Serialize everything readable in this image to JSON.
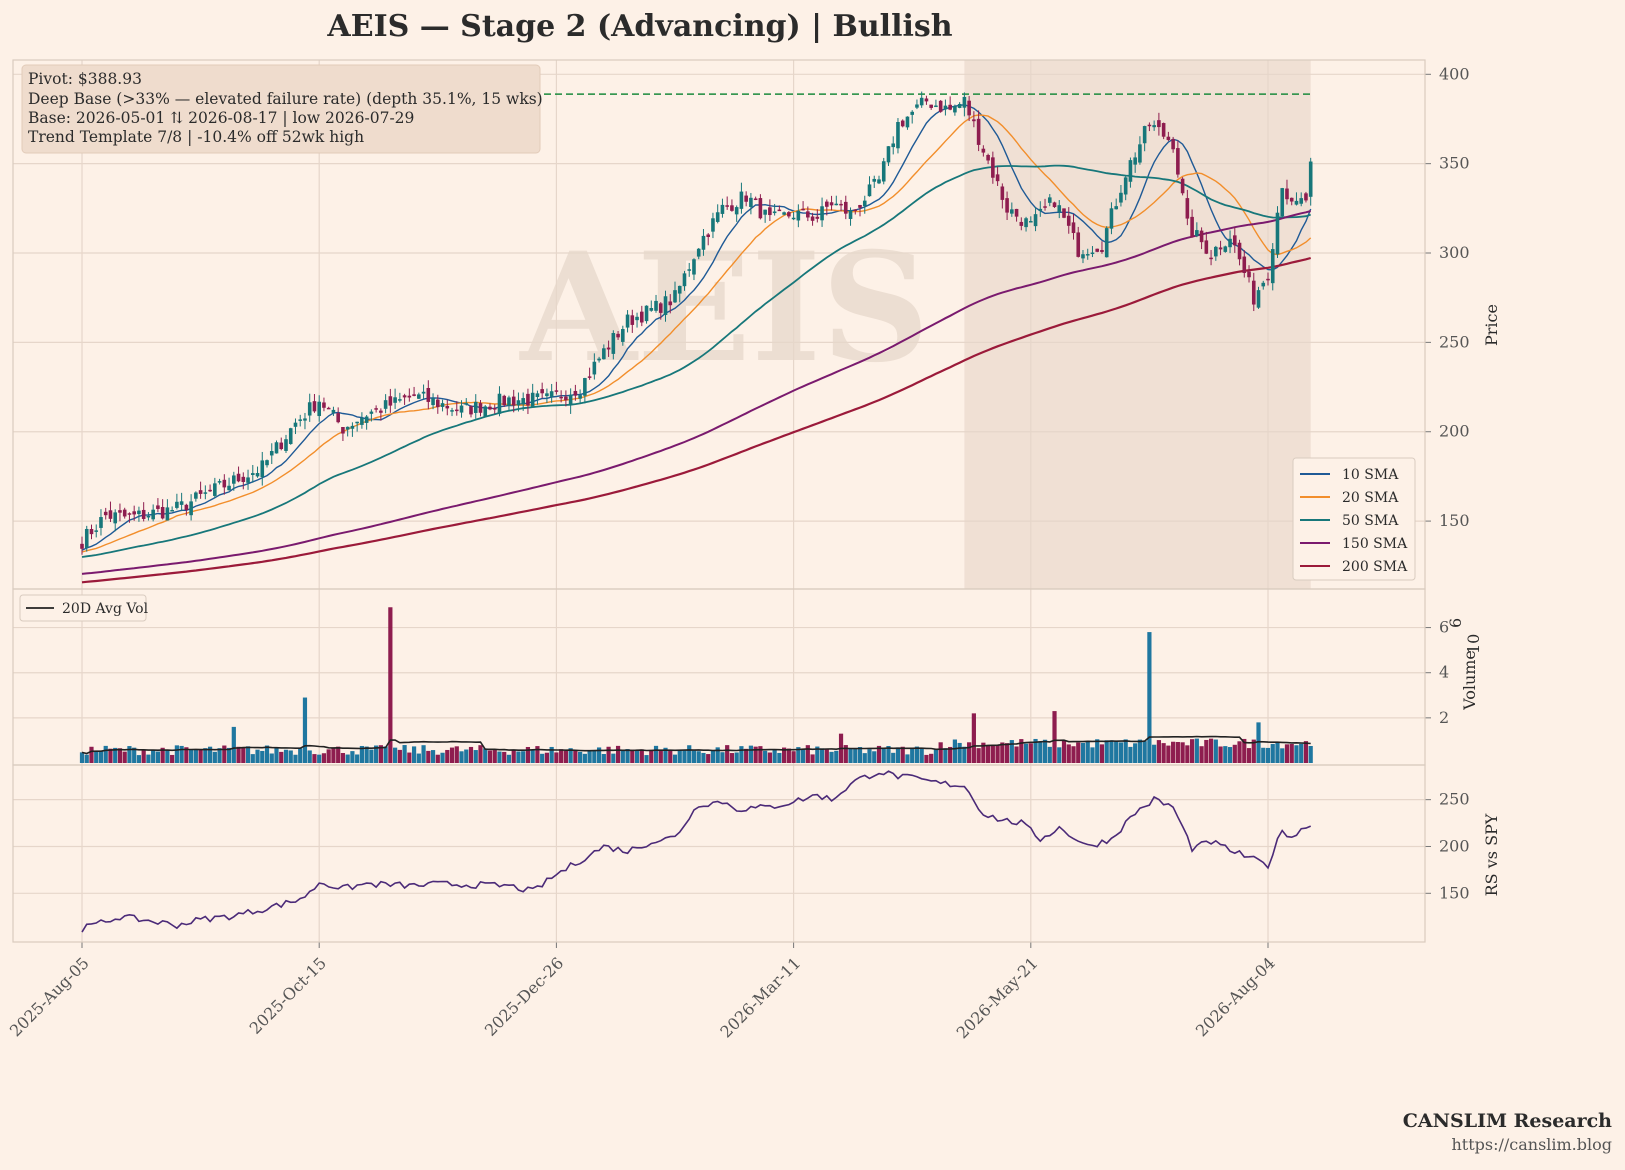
{
  "title": "AEIS  —  Stage 2 (Advancing)  |  Bullish",
  "watermark": "AEIS",
  "annotation_box": {
    "line1": "Pivot: $388.93",
    "line2": "Deep Base (>33% — elevated failure rate)  (depth 35.1%, 15 wks)",
    "line3": "Base: 2026-05-01 ⇅ 2026-08-17  |  low 2026-07-29",
    "line4": "Trend Template 7/8  |  -10.4% off 52wk high"
  },
  "footer": {
    "brand": "CANSLIM Research",
    "url": "https://canslim.blog"
  },
  "colors": {
    "background": "#fdf1e7",
    "sma10": "#1f5a96",
    "sma20": "#f28e2b",
    "sma50": "#17777a",
    "sma150": "#7a1a6e",
    "sma200": "#9b1a3a",
    "candle_up": "#17777a",
    "candle_down": "#8e1d4f",
    "pivot_line": "#1b8a3c",
    "base_shade": "#e9d8cc",
    "rs_line": "#4b2a78",
    "avg_vol": "#222222"
  },
  "chart_data": {
    "type": "candlestick",
    "x_tick_labels": [
      "2025-Aug-05",
      "2025-Oct-15",
      "2025-Dec-26",
      "2026-Mar-11",
      "2026-May-21",
      "2026-Aug-04"
    ],
    "x_tick_index": [
      0,
      50,
      100,
      150,
      200,
      250
    ],
    "n_bars": 260,
    "price_panel": {
      "ylabel": "Price",
      "yticks": [
        150,
        200,
        250,
        300,
        350,
        400
      ],
      "ylim": [
        112,
        408
      ],
      "pivot": 388.93,
      "base_shaded_index_range": [
        186,
        259
      ],
      "price_anchors": [
        [
          0,
          139
        ],
        [
          5,
          153
        ],
        [
          10,
          152
        ],
        [
          20,
          157
        ],
        [
          30,
          170
        ],
        [
          38,
          180
        ],
        [
          45,
          205
        ],
        [
          50,
          218
        ],
        [
          55,
          202
        ],
        [
          60,
          210
        ],
        [
          70,
          220
        ],
        [
          80,
          212
        ],
        [
          90,
          218
        ],
        [
          98,
          218
        ],
        [
          105,
          225
        ],
        [
          110,
          245
        ],
        [
          115,
          262
        ],
        [
          120,
          268
        ],
        [
          125,
          275
        ],
        [
          130,
          305
        ],
        [
          135,
          325
        ],
        [
          140,
          332
        ],
        [
          145,
          318
        ],
        [
          150,
          322
        ],
        [
          155,
          320
        ],
        [
          158,
          328
        ],
        [
          162,
          322
        ],
        [
          168,
          340
        ],
        [
          172,
          372
        ],
        [
          178,
          385
        ],
        [
          183,
          380
        ],
        [
          186,
          385
        ],
        [
          190,
          358
        ],
        [
          195,
          325
        ],
        [
          200,
          315
        ],
        [
          205,
          330
        ],
        [
          210,
          302
        ],
        [
          215,
          305
        ],
        [
          220,
          345
        ],
        [
          225,
          372
        ],
        [
          230,
          362
        ],
        [
          233,
          315
        ],
        [
          238,
          300
        ],
        [
          242,
          310
        ],
        [
          247,
          275
        ],
        [
          250,
          290
        ],
        [
          253,
          340
        ],
        [
          255,
          325
        ],
        [
          258,
          330
        ],
        [
          259,
          348
        ]
      ],
      "legend": [
        {
          "name": "10 SMA",
          "color_key": "sma10"
        },
        {
          "name": "20 SMA",
          "color_key": "sma20"
        },
        {
          "name": "50 SMA",
          "color_key": "sma50"
        },
        {
          "name": "150 SMA",
          "color_key": "sma150"
        },
        {
          "name": "200 SMA",
          "color_key": "sma200"
        }
      ],
      "legend_position": "lower-right"
    },
    "volume_panel": {
      "ylabel": "Volume",
      "exponent": "10",
      "exponent_power": "6",
      "yticks": [
        "2",
        "4",
        "6"
      ],
      "ylim_millions": [
        0,
        7
      ],
      "legend": "20D Avg Vol",
      "legend_position": "upper-left",
      "spikes_millions": [
        [
          65,
          6.9
        ],
        [
          225,
          5.8
        ],
        [
          65,
          6.9
        ],
        [
          47,
          2.9
        ],
        [
          32,
          1.6
        ],
        [
          188,
          2.2
        ],
        [
          205,
          2.3
        ],
        [
          248,
          1.8
        ],
        [
          160,
          1.3
        ]
      ]
    },
    "rs_panel": {
      "ylabel": "RS vs SPY",
      "yticks": [
        150,
        200,
        250
      ],
      "ylim": [
        98,
        287
      ],
      "rs_anchors": [
        [
          0,
          112
        ],
        [
          8,
          125
        ],
        [
          15,
          120
        ],
        [
          20,
          116
        ],
        [
          25,
          122
        ],
        [
          32,
          126
        ],
        [
          38,
          133
        ],
        [
          45,
          142
        ],
        [
          48,
          150
        ],
        [
          50,
          162
        ],
        [
          55,
          155
        ],
        [
          60,
          160
        ],
        [
          70,
          158
        ],
        [
          75,
          160
        ],
        [
          90,
          158
        ],
        [
          95,
          152
        ],
        [
          100,
          170
        ],
        [
          110,
          200
        ],
        [
          115,
          195
        ],
        [
          120,
          205
        ],
        [
          125,
          210
        ],
        [
          130,
          245
        ],
        [
          135,
          248
        ],
        [
          138,
          240
        ],
        [
          145,
          242
        ],
        [
          150,
          248
        ],
        [
          155,
          255
        ],
        [
          158,
          250
        ],
        [
          163,
          270
        ],
        [
          168,
          280
        ],
        [
          172,
          275
        ],
        [
          176,
          272
        ],
        [
          180,
          268
        ],
        [
          186,
          265
        ],
        [
          190,
          235
        ],
        [
          194,
          228
        ],
        [
          198,
          225
        ],
        [
          202,
          208
        ],
        [
          206,
          220
        ],
        [
          212,
          200
        ],
        [
          217,
          208
        ],
        [
          222,
          236
        ],
        [
          226,
          250
        ],
        [
          230,
          242
        ],
        [
          234,
          198
        ],
        [
          238,
          205
        ],
        [
          244,
          192
        ],
        [
          250,
          180
        ],
        [
          253,
          218
        ],
        [
          255,
          210
        ],
        [
          259,
          225
        ]
      ]
    }
  }
}
